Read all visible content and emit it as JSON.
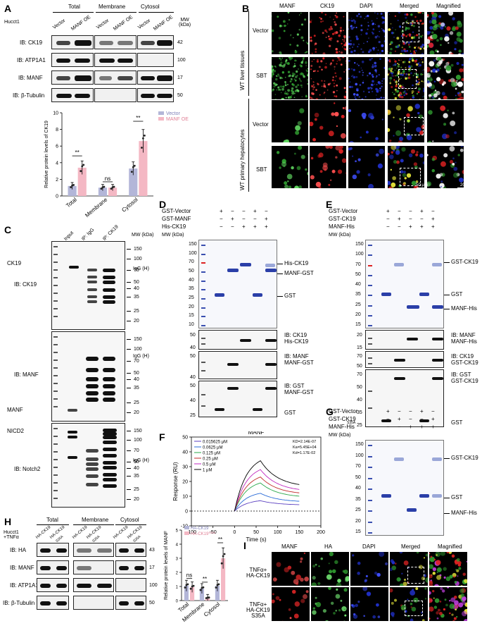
{
  "panels": {
    "A": "A",
    "B": "B",
    "C": "C",
    "D": "D",
    "E": "E",
    "F": "F",
    "G": "G",
    "H": "H",
    "I": "I"
  },
  "A": {
    "cell": "Hucct1",
    "groups": [
      "Total",
      "Membrane",
      "Cytosol"
    ],
    "lanes": [
      "Vector",
      "MANF OE"
    ],
    "mw_header": "MW\n(kDa)",
    "blots": [
      {
        "label": "IB: CK19",
        "mw": "42"
      },
      {
        "label": "IB: ATP1A1",
        "mw": "100"
      },
      {
        "label": "IB: MANF",
        "mw": "17"
      },
      {
        "label": "IB: β-Tubulin",
        "mw": "50"
      }
    ],
    "chart_data": {
      "type": "bar",
      "categories": [
        "Total",
        "Membrane",
        "Cytosol"
      ],
      "series": [
        {
          "name": "Vector",
          "values": [
            1.2,
            1.0,
            3.3
          ],
          "color": "#b3b6d8"
        },
        {
          "name": "MANF OE",
          "values": [
            3.4,
            1.0,
            6.6
          ],
          "color": "#f4b8c4"
        }
      ],
      "ylabel": "Relative protein levels of CK19",
      "ylim": [
        0,
        10
      ],
      "yticks": [
        "0",
        "2",
        "4",
        "6",
        "8",
        "10"
      ],
      "significance": [
        "**",
        "ns",
        "**"
      ]
    }
  },
  "B": {
    "columns": [
      "MANF",
      "CK19",
      "DAPI",
      "Merged",
      "Magnified"
    ],
    "groups": [
      "WT liver tissues",
      "WT primary hepatocytes"
    ],
    "rows": [
      "Vector",
      "SBT",
      "Vector",
      "SBT"
    ],
    "scale1": "50 μm",
    "scale2": "20 μm"
  },
  "C": {
    "lanes": [
      "Input",
      "IP: IgG",
      "IP: CK19"
    ],
    "mw_header": "MW (kDa)",
    "blots": [
      {
        "label": "IB: CK19",
        "target": "CK19",
        "mw": [
          "150",
          "100",
          "70",
          "50",
          "40",
          "35",
          "25",
          "20"
        ],
        "igg": "IgG (H)"
      },
      {
        "label": "IB: MANF",
        "target": "MANF",
        "mw": [
          "150",
          "100",
          "70",
          "50",
          "40",
          "35",
          "25",
          "20"
        ],
        "igg": "IgG (H)"
      },
      {
        "label": "IB: Notch2",
        "target": "NICD2",
        "mw": [
          "150",
          "100",
          "70",
          "50",
          "40",
          "35",
          "25",
          "20"
        ],
        "igg": "IgG (H)"
      }
    ]
  },
  "D": {
    "rows": [
      {
        "name": "GST-Vector",
        "signs": [
          "+",
          "−",
          "−",
          "+",
          "−"
        ]
      },
      {
        "name": "GST-MANF",
        "signs": [
          "−",
          "+",
          "−",
          "−",
          "+"
        ]
      },
      {
        "name": "His-CK19",
        "signs": [
          "−",
          "−",
          "+",
          "+",
          "+"
        ]
      }
    ],
    "mw_header": "MW (kDa)",
    "gel_mw": [
      "150",
      "100",
      "70",
      "50",
      "40",
      "35",
      "25",
      "20",
      "15",
      "10"
    ],
    "gel_labels": [
      "His-CK19",
      "MANF-GST",
      "GST"
    ],
    "blots": [
      {
        "label": "IB: CK19",
        "target": "His-CK19",
        "mw": [
          "50",
          "40"
        ]
      },
      {
        "label": "IB: MANF",
        "target": "MANF-GST",
        "mw": [
          "50",
          "40"
        ]
      },
      {
        "label": "IB: GST",
        "target": "MANF-GST",
        "target2": "GST",
        "mw": [
          "50",
          "40",
          "25"
        ]
      }
    ]
  },
  "E": {
    "rows": [
      {
        "name": "GST-Vector",
        "signs": [
          "+",
          "−",
          "−",
          "+",
          "−"
        ]
      },
      {
        "name": "GST-CK19",
        "signs": [
          "−",
          "+",
          "−",
          "−",
          "+"
        ]
      },
      {
        "name": "MANF-His",
        "signs": [
          "−",
          "−",
          "+",
          "+",
          "+"
        ]
      }
    ],
    "mw_header": "MW (kDa)",
    "gel_mw": [
      "150",
      "100",
      "70",
      "50",
      "40",
      "35",
      "25",
      "20",
      "15"
    ],
    "gel_labels": [
      "GST-CK19",
      "GST",
      "MANF-His"
    ],
    "blots": [
      {
        "label": "IB: MANF",
        "target": "MANF-His",
        "mw": [
          "20",
          "15"
        ]
      },
      {
        "label": "IB: CK19",
        "target": "GST-CK19",
        "mw": [
          "70",
          "50"
        ]
      },
      {
        "label": "IB: GST",
        "target": "GST-CK19",
        "target2": "GST",
        "mw": [
          "70",
          "50",
          "40",
          "35",
          "25"
        ]
      }
    ]
  },
  "F": {
    "title": "MANF",
    "kd": "KD=2.14E-07",
    "ka": "Ka=5.45E+04",
    "kdiss": "Kd=1.17E-02",
    "chart_data": {
      "type": "line",
      "xlabel": "Time (s)",
      "ylabel": "Response (RU)",
      "xlim": [
        -100,
        200
      ],
      "ylim": [
        -10,
        50
      ],
      "xticks": [
        "-100",
        "-50",
        "0",
        "50",
        "100",
        "150",
        "200"
      ],
      "yticks": [
        "-10",
        "0",
        "10",
        "20",
        "30",
        "40",
        "50"
      ],
      "series": [
        {
          "name": "0.015625 μM",
          "color": "#5a3fc0",
          "peak": 7,
          "end": 4
        },
        {
          "name": "0.0625 μM",
          "color": "#2a6bd8",
          "peak": 12,
          "end": 6
        },
        {
          "name": "0.125 μM",
          "color": "#2aa84a",
          "peak": 19,
          "end": 9
        },
        {
          "name": "0.25 μM",
          "color": "#c02a2a",
          "peak": 23,
          "end": 11
        },
        {
          "name": "0.5 μM",
          "color": "#c02ac0",
          "peak": 28,
          "end": 13
        },
        {
          "name": "1 μM",
          "color": "#000000",
          "peak": 34,
          "end": 16
        }
      ]
    }
  },
  "G": {
    "rows": [
      {
        "name": "GST-Vector",
        "signs": [
          "+",
          "−",
          "−",
          "+",
          "−"
        ]
      },
      {
        "name": "GST-CK19",
        "sub": "S35A",
        "signs": [
          "−",
          "+",
          "−",
          "−",
          "+"
        ]
      },
      {
        "name": "MANF-His",
        "signs": [
          "−",
          "−",
          "+",
          "+",
          "+"
        ]
      }
    ],
    "mw_header": "MW (kDa)",
    "gel_mw": [
      "150",
      "100",
      "70",
      "50",
      "40",
      "35",
      "25",
      "20",
      "15"
    ],
    "gel_labels": [
      "GST-CK19",
      "GST",
      "MANF-His"
    ]
  },
  "H": {
    "cell": "Hucct1\n+TNFα",
    "groups": [
      "Total",
      "Membrane",
      "Cytosol"
    ],
    "lanes": [
      "HA-CK19",
      "HA-CK19 S35A"
    ],
    "blots": [
      {
        "label": "IB: HA",
        "mw": "43"
      },
      {
        "label": "IB: MANF",
        "mw": "17"
      },
      {
        "label": "IB: ATP1A1",
        "mw": "100"
      },
      {
        "label": "IB: β-Tubulin",
        "mw": "50"
      }
    ],
    "chart_data": {
      "type": "bar",
      "categories": [
        "Total",
        "Membrane",
        "Cytosol"
      ],
      "series": [
        {
          "name": "HA-CK19",
          "values": [
            1.05,
            0.85,
            1.05
          ],
          "color": "#b3b6d8"
        },
        {
          "name": "HA-CK19S35A",
          "values": [
            0.95,
            0.2,
            3.0
          ],
          "color": "#f4b8c4"
        }
      ],
      "ylabel": "Relative protein levels of MANF",
      "ylim": [
        0,
        5
      ],
      "yticks": [
        "0",
        "1",
        "2",
        "3",
        "4",
        "5"
      ],
      "significance": [
        "ns",
        "**",
        "**"
      ]
    }
  },
  "I": {
    "columns": [
      "MANF",
      "HA",
      "DAPI",
      "Merged",
      "Magnified"
    ],
    "rows": [
      "TNFα+\nHA-CK19",
      "TNFα+\nHA-CK19\nS35A"
    ],
    "scale1": "50 μm",
    "scale2": "20 μm"
  }
}
